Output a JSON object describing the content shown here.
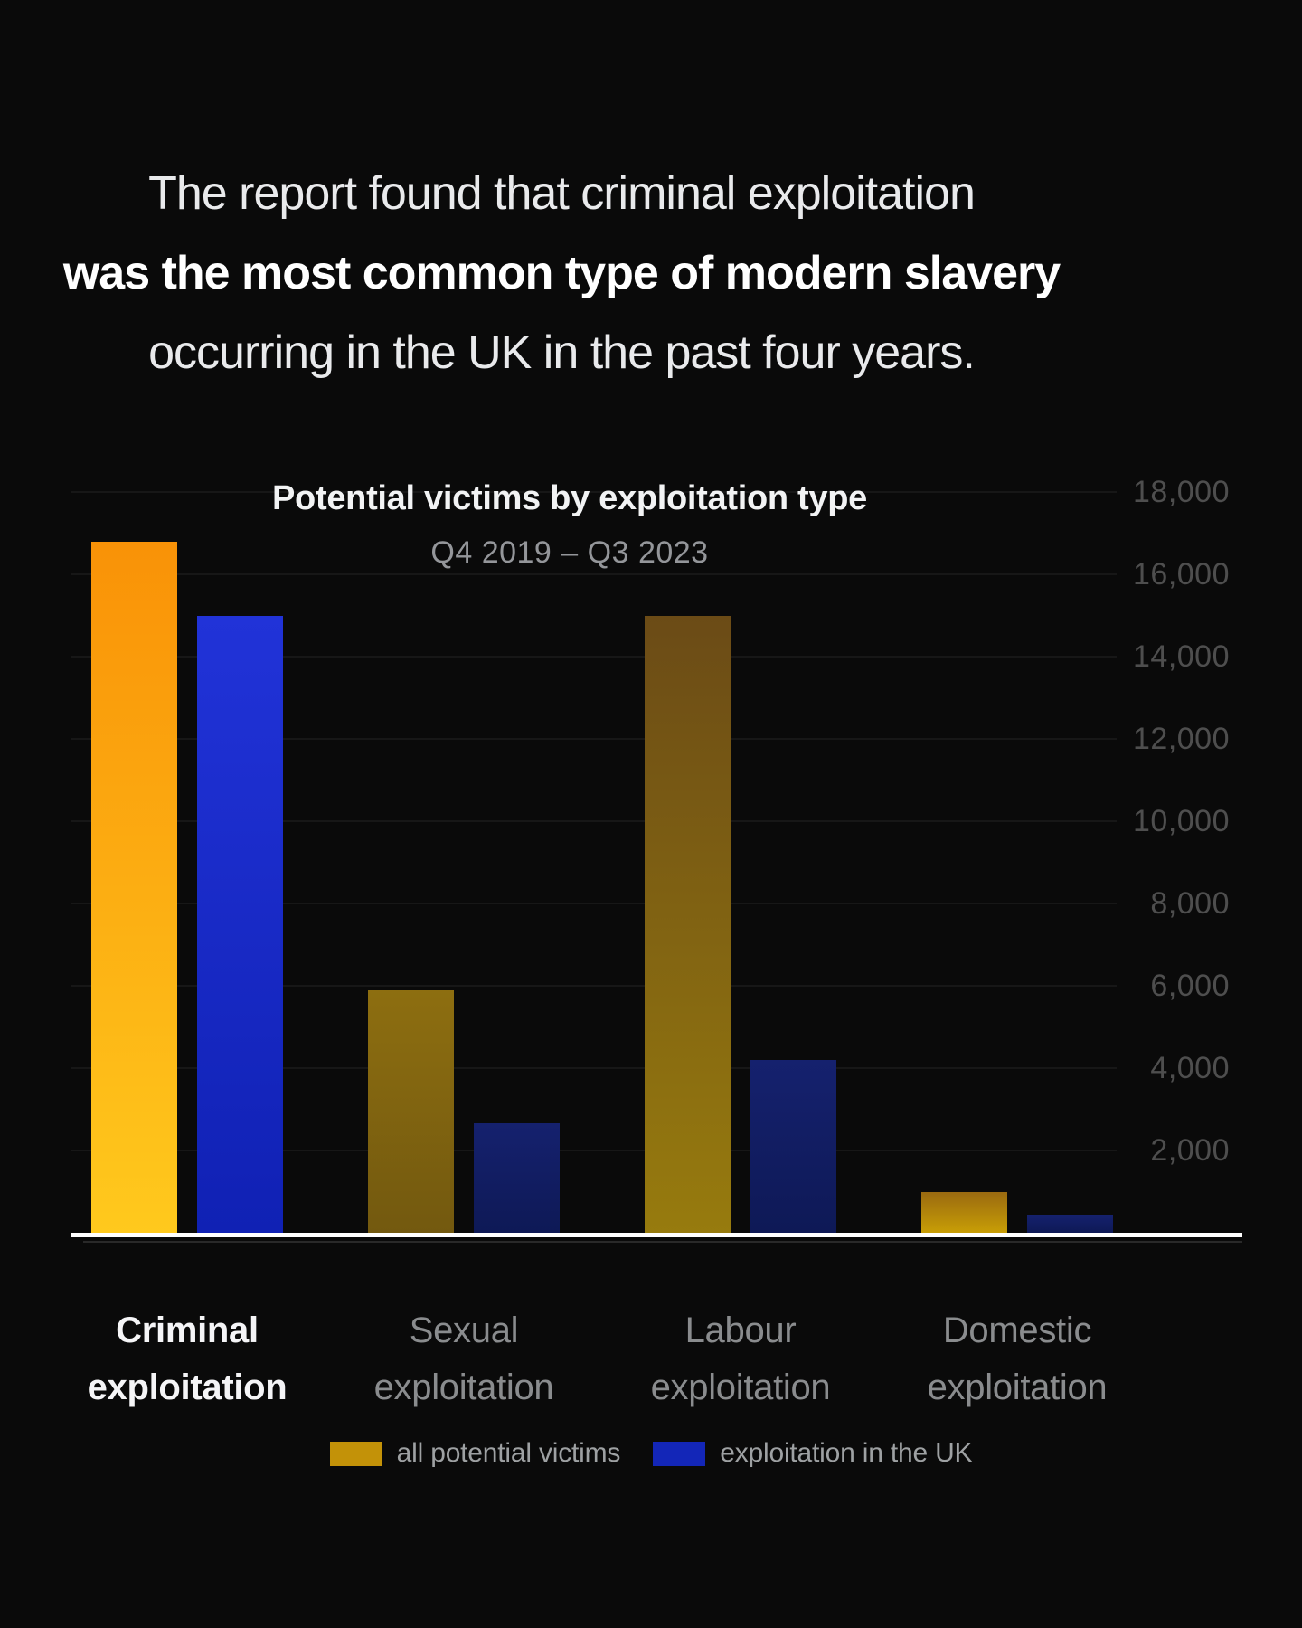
{
  "headline": {
    "line1": "The report found that criminal exploitation",
    "line2": "was the most common type of modern slavery",
    "line3": "occurring in the UK in the past four years."
  },
  "chart_data": {
    "type": "bar",
    "title": "Potential victims by exploitation type",
    "subtitle": "Q4 2019 – Q3 2023",
    "ylim": [
      0,
      18000
    ],
    "grid": true,
    "legend_position": "bottom",
    "highlighted_category": "Criminal exploitation",
    "y_ticks": [
      {
        "value": 2000,
        "label": "2,000"
      },
      {
        "value": 4000,
        "label": "4,000"
      },
      {
        "value": 6000,
        "label": "6,000"
      },
      {
        "value": 8000,
        "label": "8,000"
      },
      {
        "value": 10000,
        "label": "10,000"
      },
      {
        "value": 12000,
        "label": "12,000"
      },
      {
        "value": 14000,
        "label": "14,000"
      },
      {
        "value": 16000,
        "label": "16,000"
      },
      {
        "value": 18000,
        "label": "18,000"
      }
    ],
    "categories": [
      {
        "line1": "Criminal",
        "line2": "exploitation",
        "highlighted": true
      },
      {
        "line1": "Sexual",
        "line2": "exploitation",
        "highlighted": false
      },
      {
        "line1": "Labour",
        "line2": "exploitation",
        "highlighted": false
      },
      {
        "line1": "Domestic",
        "line2": "exploitation",
        "highlighted": false
      }
    ],
    "series": [
      {
        "name": "all potential victims",
        "key": "all",
        "legend_color": "#c39208",
        "values": [
          16800,
          5900,
          15000,
          1000
        ],
        "bar_gradients": [
          [
            "#f99207",
            "#ffc91d"
          ],
          [
            "#8d6e10",
            "#73590f"
          ],
          [
            "#6b4b16",
            "#977b0e"
          ],
          [
            "#9a6a10",
            "#c89e06"
          ]
        ]
      },
      {
        "name": "exploitation in the UK",
        "key": "uk",
        "legend_color": "#1326b8",
        "values": [
          15000,
          2650,
          4200,
          450
        ],
        "bar_gradients": [
          [
            "#2133d8",
            "#1021b4"
          ],
          [
            "#15216e",
            "#0e1956"
          ],
          [
            "#15216e",
            "#0e1956"
          ],
          [
            "#15216e",
            "#0e1956"
          ]
        ]
      }
    ]
  },
  "style": {
    "background": "#0a0a0a",
    "axis_line_color": "#ffffff",
    "gridline_color": "rgba(255,255,255,0.055)",
    "ytick_color": "#4e4e4e",
    "category_color": "#8a8c8e",
    "category_highlight_color": "#f5f5f7",
    "legend_text_color": "#9ea1a3"
  }
}
